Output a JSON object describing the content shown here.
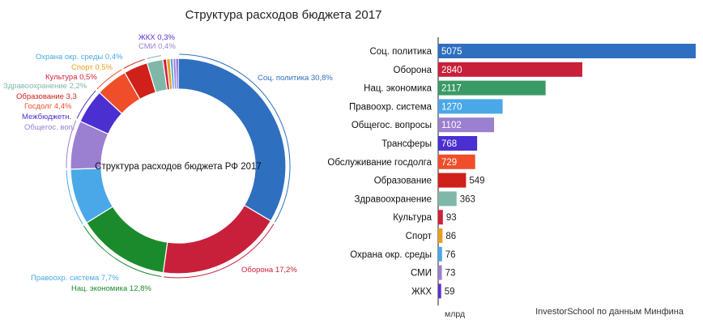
{
  "title": "Структура расходов бюджета 2017",
  "source": "InvestorSchool по данным Минфина",
  "chart_data": [
    {
      "type": "pie",
      "variant": "donut",
      "center_label": "Структура расходов бюджета РФ 2017",
      "slices": [
        {
          "name": "Соц. политика",
          "label": "Соц. политика 30,8%",
          "value": 30.8,
          "color": "#2f6fc0"
        },
        {
          "name": "Оборона",
          "label": "Оборона 17,2%",
          "value": 17.2,
          "color": "#c8203a"
        },
        {
          "name": "Нац. экономика",
          "label": "Нац. экономика 12,8%",
          "value": 12.8,
          "color": "#1a8a2c"
        },
        {
          "name": "Правоохр. система",
          "label": "Правоохр. система 7,7%",
          "value": 7.7,
          "color": "#4aa8e8"
        },
        {
          "name": "Общегос. воп.",
          "label": "Общегос. воп.",
          "value": 6.7,
          "color": "#9b7fd0"
        },
        {
          "name": "Межбюджетн.",
          "label": "Межбюджетн.",
          "value": 4.7,
          "color": "#4b2fd0"
        },
        {
          "name": "Госдолг",
          "label": "Госдолг 4,4%",
          "value": 4.4,
          "color": "#f04e2a"
        },
        {
          "name": "Образование",
          "label": "Образование 3,3",
          "value": 3.3,
          "color": "#d0201a"
        },
        {
          "name": "Здравоохранение",
          "label": "Здравоохранение 2,2%",
          "value": 2.2,
          "color": "#7fb8a8"
        },
        {
          "name": "Культура",
          "label": "Культура 0,5%",
          "value": 0.5,
          "color": "#d2203a"
        },
        {
          "name": "Спорт",
          "label": "Спорт 0,5%",
          "value": 0.5,
          "color": "#e8a020"
        },
        {
          "name": "Охрана окр. среды",
          "label": "Охрана окр. среды 0,4%",
          "value": 0.4,
          "color": "#4aa8e8"
        },
        {
          "name": "СМИ",
          "label": "СМИ 0,4%",
          "value": 0.4,
          "color": "#9b7fd0"
        },
        {
          "name": "ЖКХ",
          "label": "ЖКХ 0,3%",
          "value": 0.3,
          "color": "#5b2fd0"
        }
      ]
    },
    {
      "type": "bar",
      "orientation": "horizontal",
      "unit_label": "млрд",
      "categories": [
        "Соц. политика",
        "Оборона",
        "Нац. экономика",
        "Правоохр. система",
        "Общегос. вопросы",
        "Трансферы",
        "Обслуживание госдолга",
        "Образование",
        "Здравоохранение",
        "Культура",
        "Спорт",
        "Охрана окр. среды",
        "СМИ",
        "ЖКХ"
      ],
      "values": [
        5075,
        2840,
        2117,
        1270,
        1102,
        768,
        729,
        549,
        363,
        93,
        86,
        76,
        73,
        59
      ],
      "colors": [
        "#2f6fc0",
        "#c8203a",
        "#3a9a66",
        "#4aa8e8",
        "#9b7fd0",
        "#4b2fd0",
        "#f04e2a",
        "#d0201a",
        "#7fb8a8",
        "#d2203a",
        "#e8a020",
        "#4aa8e8",
        "#9b7fd0",
        "#5b2fd0"
      ],
      "xlim": [
        0,
        5075
      ]
    }
  ]
}
